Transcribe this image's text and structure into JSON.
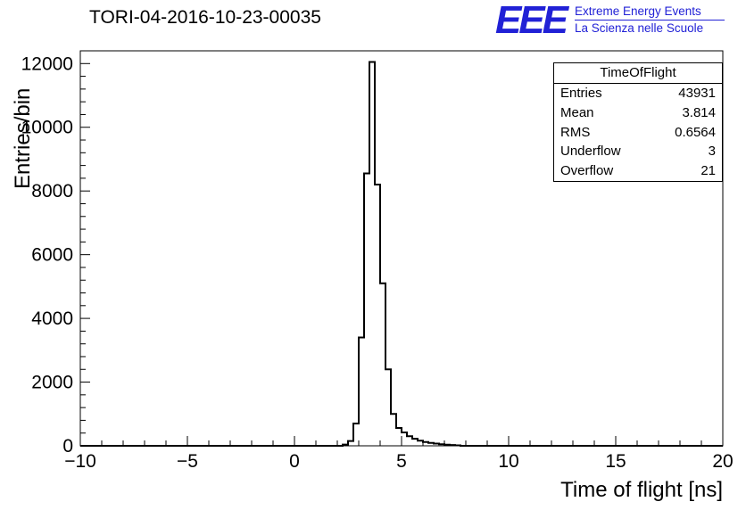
{
  "title": "TORI-04-2016-10-23-00035",
  "logo": {
    "text": "EEE",
    "line1": "Extreme Energy Events",
    "line2": "La Scienza nelle Scuole",
    "color": "#2121d6"
  },
  "stats": {
    "title": "TimeOfFlight",
    "rows": [
      {
        "label": "Entries",
        "value": "43931"
      },
      {
        "label": "Mean",
        "value": "3.814"
      },
      {
        "label": "RMS",
        "value": "0.6564"
      },
      {
        "label": "Underflow",
        "value": "3"
      },
      {
        "label": "Overflow",
        "value": "21"
      }
    ]
  },
  "chart_data": {
    "type": "histogram-step",
    "title": "TORI-04-2016-10-23-00035",
    "xlabel": "Time of flight [ns]",
    "ylabel": "Entries/bin",
    "xlim": [
      -10,
      20
    ],
    "ylim": [
      0,
      12400
    ],
    "xtick_values": [
      -10,
      -5,
      0,
      5,
      10,
      15,
      20
    ],
    "xtick_labels": [
      "−10",
      "−5",
      "0",
      "5",
      "10",
      "15",
      "20"
    ],
    "x_major_step": 5,
    "x_minor_step": 1,
    "ytick_values": [
      0,
      2000,
      4000,
      6000,
      8000,
      10000,
      12000
    ],
    "ytick_labels": [
      "0",
      "2000",
      "4000",
      "6000",
      "8000",
      "10000",
      "12000"
    ],
    "y_major_step": 2000,
    "y_minor_step": 400,
    "grid": false,
    "line_color": "#000000",
    "bin_start": 2.25,
    "bin_width": 0.25,
    "counts": [
      40,
      150,
      700,
      3400,
      8550,
      12050,
      8200,
      5100,
      2400,
      1000,
      560,
      420,
      300,
      220,
      160,
      120,
      90,
      70,
      50,
      35,
      25,
      15
    ]
  }
}
